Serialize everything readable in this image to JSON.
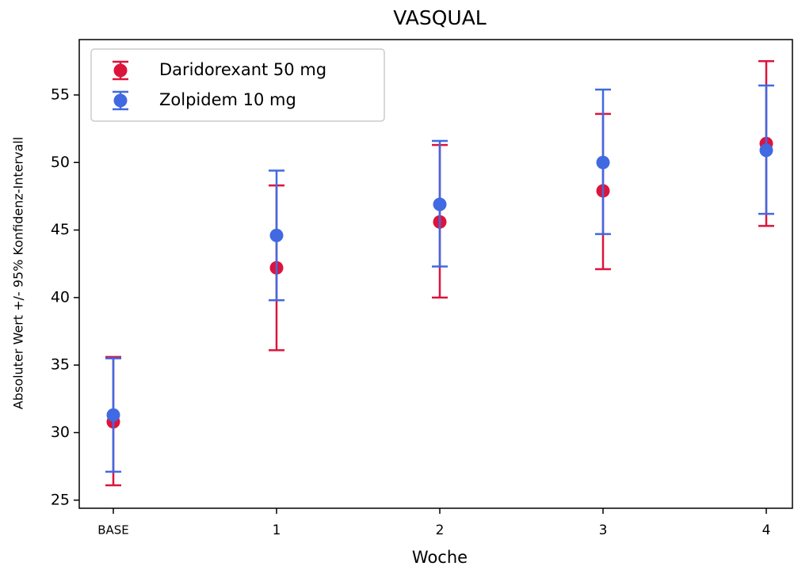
{
  "chart_data": {
    "type": "errorbar",
    "title": "VASQUAL",
    "x_label": "Woche",
    "y_label": "Absoluter Wert +/- 95% Konfidenz-Intervall",
    "categories": [
      "BASE",
      "1",
      "2",
      "3",
      "4"
    ],
    "series": [
      {
        "name": "Daridorexant 50 mg",
        "color": "#dc143c",
        "values": [
          30.8,
          42.2,
          45.6,
          47.9,
          51.4
        ],
        "lower": [
          26.1,
          36.1,
          40.0,
          42.1,
          45.3
        ],
        "upper": [
          35.6,
          48.3,
          51.3,
          53.6,
          57.5
        ]
      },
      {
        "name": "Zolpidem 10 mg",
        "color": "#4169e1",
        "values": [
          31.3,
          44.6,
          46.9,
          50.0,
          50.9
        ],
        "lower": [
          27.1,
          39.8,
          42.3,
          44.7,
          46.2
        ],
        "upper": [
          35.5,
          49.4,
          51.6,
          55.4,
          55.7
        ]
      }
    ],
    "ylim": [
      24.4,
      59.1
    ],
    "yticks": [
      25,
      30,
      35,
      40,
      45,
      50,
      55
    ],
    "legend": "upper left"
  }
}
